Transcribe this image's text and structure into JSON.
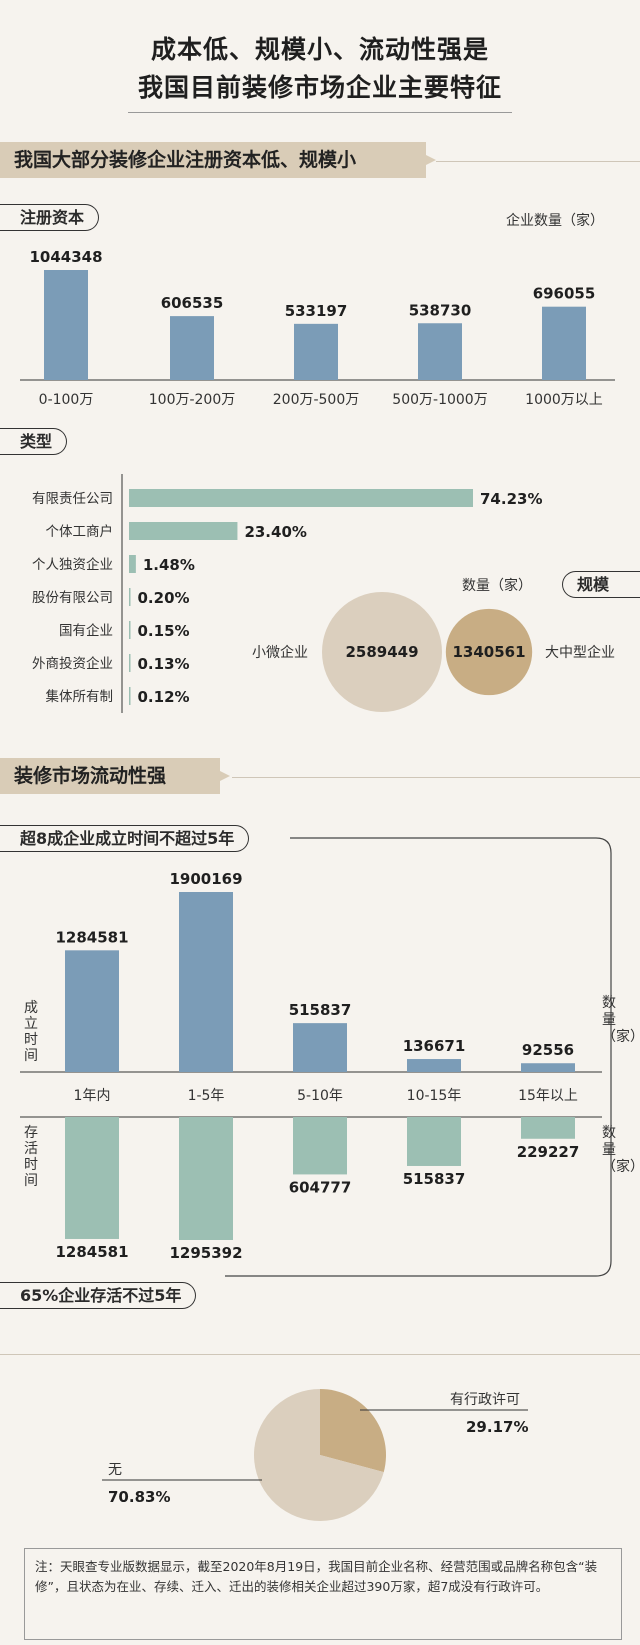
{
  "header": {
    "title_line1": "成本低、规模小、流动性强是",
    "title_line2": "我国目前装修市场企业主要特征"
  },
  "section1": {
    "band": "我国大部分装修企业注册资本低、规模小",
    "capital_pill": "注册资本",
    "capital_unit": "企业数量（家）",
    "type_pill": "类型",
    "scale_pill": "规模",
    "scale_unit": "数量（家）",
    "small_label": "小微企业",
    "large_label": "大中型企业"
  },
  "section2": {
    "band": "装修市场流动性强",
    "top_pill": "超8成企业成立时间不超过5年",
    "bottom_pill": "65%企业存活不过5年",
    "established_label": "成立时间",
    "survival_label": "存活时间",
    "count_label": "数量（家）"
  },
  "note": "注：天眼查专业版数据显示，截至2020年8月19日，我国目前企业名称、经营范围或品牌名称包含“装修”，且状态为在业、存续、迁入、迁出的装修相关企业超过390万家，超7成没有行政许可。",
  "colors": {
    "blue": "#7b9cb7",
    "green": "#9cbfb3",
    "beige": "#dbcfbe",
    "gold": "#c8ad84"
  },
  "chart_data": [
    {
      "type": "bar",
      "categories": [
        "0-100万",
        "100万-200万",
        "200万-500万",
        "500万-1000万",
        "1000万以上"
      ],
      "values": [
        1044348,
        606535,
        533197,
        538730,
        696055
      ],
      "value_labels": [
        "1044348",
        "606535",
        "533197",
        "538730",
        "696055"
      ],
      "ylabel": "企业数量（家）"
    },
    {
      "type": "bar",
      "orientation": "horizontal",
      "categories": [
        "有限责任公司",
        "个体工商户",
        "个人独资企业",
        "股份有限公司",
        "国有企业",
        "外商投资企业",
        "集体所有制"
      ],
      "values": [
        74.23,
        23.4,
        1.48,
        0.2,
        0.15,
        0.13,
        0.12
      ],
      "value_labels": [
        "74.23%",
        "23.40%",
        "1.48%",
        "0.20%",
        "0.15%",
        "0.13%",
        "0.12%"
      ]
    },
    {
      "type": "bubble",
      "categories": [
        "小微企业",
        "大中型企业"
      ],
      "values": [
        2589449,
        1340561
      ],
      "value_labels": [
        "2589449",
        "1340561"
      ]
    },
    {
      "type": "bar",
      "categories": [
        "1年内",
        "1-5年",
        "5-10年",
        "10-15年",
        "15年以上"
      ],
      "series": [
        {
          "name": "成立时间",
          "values": [
            1284581,
            1900169,
            515837,
            136671,
            92556
          ],
          "value_labels": [
            "1284581",
            "1900169",
            "515837",
            "136671",
            "92556"
          ]
        },
        {
          "name": "存活时间",
          "values": [
            1284581,
            1295392,
            604777,
            515837,
            229227
          ],
          "value_labels": [
            "1284581",
            "1295392",
            "604777",
            "515837",
            "229227"
          ]
        }
      ]
    },
    {
      "type": "pie",
      "categories": [
        "有行政许可",
        "无"
      ],
      "values": [
        29.17,
        70.83
      ],
      "value_labels": [
        "29.17%",
        "70.83%"
      ]
    }
  ]
}
